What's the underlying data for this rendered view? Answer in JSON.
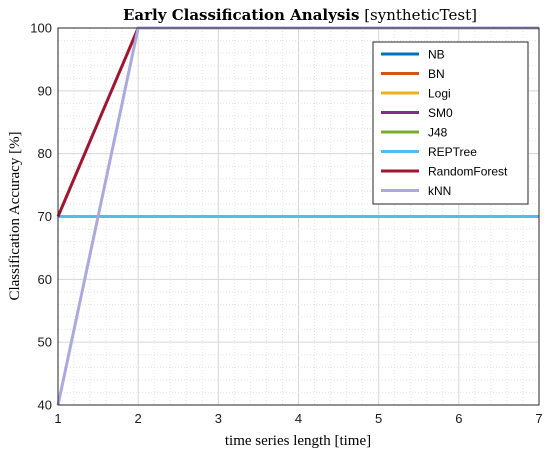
{
  "chart_data": {
    "type": "line",
    "title_bold": "Early Classification Analysis",
    "title_rest": "[syntheticTest]",
    "xlabel": "time series length [time]",
    "ylabel": "Classification Accuracy [%]",
    "xlim": [
      1,
      7
    ],
    "ylim": [
      40,
      100
    ],
    "x_ticks": [
      1,
      2,
      3,
      4,
      5,
      6,
      7
    ],
    "y_ticks": [
      40,
      50,
      60,
      70,
      80,
      90,
      100
    ],
    "grid": true,
    "legend_position": "top-right",
    "x": [
      1,
      2,
      3,
      4,
      5,
      6,
      7
    ],
    "series": [
      {
        "name": "NB",
        "color": "#0072BD",
        "values": [
          70,
          70,
          70,
          70,
          70,
          70,
          70
        ]
      },
      {
        "name": "BN",
        "color": "#D95319",
        "values": [
          70,
          70,
          70,
          70,
          70,
          70,
          70
        ]
      },
      {
        "name": "Logi",
        "color": "#EDB120",
        "values": [
          70,
          70,
          70,
          70,
          70,
          70,
          70
        ]
      },
      {
        "name": "SM0",
        "color": "#7E2F8E",
        "values": [
          70,
          70,
          70,
          70,
          70,
          70,
          70
        ]
      },
      {
        "name": "J48",
        "color": "#77AC30",
        "values": [
          70,
          70,
          70,
          70,
          70,
          70,
          70
        ]
      },
      {
        "name": "REPTree",
        "color": "#4DBEEE",
        "values": [
          70,
          70,
          70,
          70,
          70,
          70,
          70
        ]
      },
      {
        "name": "RandomForest",
        "color": "#A2142F",
        "values": [
          70,
          100,
          100,
          100,
          100,
          100,
          100
        ]
      },
      {
        "name": "kNN",
        "color": "#AAAADF",
        "values": [
          40,
          100,
          100,
          100,
          100,
          100,
          100
        ]
      }
    ]
  }
}
